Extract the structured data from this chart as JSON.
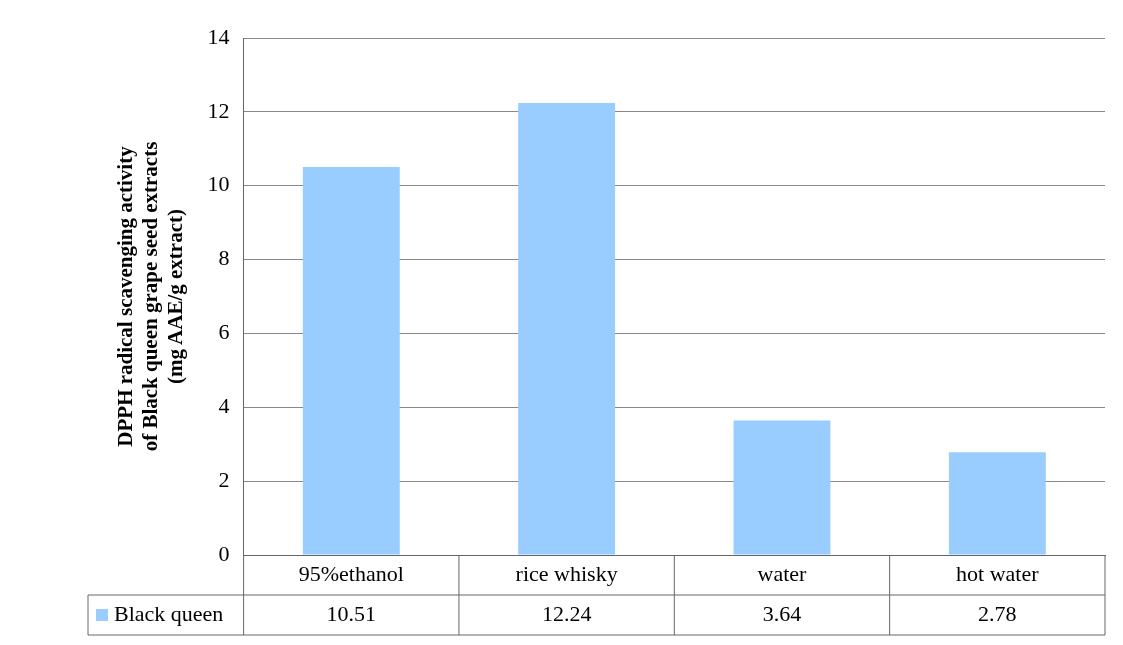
{
  "chart_data": {
    "type": "bar",
    "ylabel": "DPPH radical scavenging activity\nof Black queen grape seed extracts\n(mg AAE/g extract)",
    "categories": [
      "95%ethanol",
      "rice whisky",
      "water",
      "hot water"
    ],
    "series": [
      {
        "name": "Black queen",
        "color": "#99ccff",
        "values": [
          10.51,
          12.24,
          3.64,
          2.78
        ]
      }
    ],
    "ylim": [
      0,
      14
    ],
    "yticks": [
      0,
      2,
      4,
      6,
      8,
      10,
      12,
      14
    ],
    "grid": "y",
    "legend": "bottom",
    "data_labels": true
  }
}
